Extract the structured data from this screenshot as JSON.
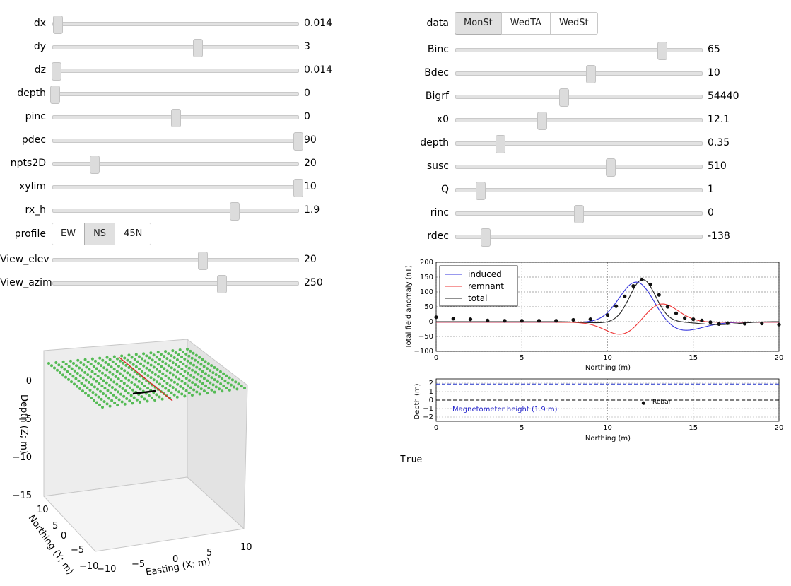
{
  "left_sliders": [
    {
      "label": "dx",
      "value": "0.014",
      "frac": 0.02
    },
    {
      "label": "dy",
      "value": "3",
      "frac": 0.59
    },
    {
      "label": "dz",
      "value": "0.014",
      "frac": 0.015
    },
    {
      "label": "depth",
      "value": "0",
      "frac": 0.01
    },
    {
      "label": "pinc",
      "value": "0",
      "frac": 0.5
    },
    {
      "label": "pdec",
      "value": "90",
      "frac": 1.0
    },
    {
      "label": "npts2D",
      "value": "20",
      "frac": 0.17
    },
    {
      "label": "xylim",
      "value": "10",
      "frac": 1.0
    },
    {
      "label": "rx_h",
      "value": "1.9",
      "frac": 0.74
    }
  ],
  "profile": {
    "label": "profile",
    "options": [
      "EW",
      "NS",
      "45N"
    ],
    "selected": "NS"
  },
  "left_sliders_2": [
    {
      "label": "View_elev",
      "value": "20",
      "frac": 0.61
    },
    {
      "label": "View_azim",
      "value": "250",
      "frac": 0.69
    }
  ],
  "data_toggle": {
    "label": "data",
    "options": [
      "MonSt",
      "WedTA",
      "WedSt"
    ],
    "selected": "MonSt"
  },
  "right_sliders": [
    {
      "label": "Binc",
      "value": "65",
      "frac": 0.84
    },
    {
      "label": "Bdec",
      "value": "10",
      "frac": 0.55
    },
    {
      "label": "Bigrf",
      "value": "54440",
      "frac": 0.44
    },
    {
      "label": "x0",
      "value": "12.1",
      "frac": 0.35
    },
    {
      "label": "depth",
      "value": "0.35",
      "frac": 0.18
    },
    {
      "label": "susc",
      "value": "510",
      "frac": 0.63
    },
    {
      "label": "Q",
      "value": "1",
      "frac": 0.1
    },
    {
      "label": "rinc",
      "value": "0",
      "frac": 0.5
    },
    {
      "label": "rdec",
      "value": "-138",
      "frac": 0.12
    }
  ],
  "chart_data": [
    {
      "type": "line",
      "xlabel": "Northing (m)",
      "ylabel": "Total field anomaly (nT)",
      "xlim": [
        0,
        20
      ],
      "ylim": [
        -100,
        200
      ],
      "xticks": [
        "0",
        "5",
        "10",
        "15",
        "20"
      ],
      "yticks": [
        "200",
        "150",
        "100",
        "50",
        "0",
        "−50",
        "−100"
      ],
      "grid": true,
      "legend_position": "top-left",
      "series": [
        {
          "name": "induced",
          "color": "#3333dd"
        },
        {
          "name": "remnant",
          "color": "#ee3333"
        },
        {
          "name": "total",
          "color": "#222222"
        }
      ],
      "observed": {
        "x": [
          0,
          1,
          2,
          3,
          4,
          5,
          6,
          7,
          8,
          9,
          10,
          10.5,
          11,
          11.5,
          12,
          12.5,
          13,
          13.5,
          14,
          14.5,
          15,
          15.5,
          16,
          16.5,
          17,
          18,
          19,
          20
        ],
        "y": [
          15,
          10,
          8,
          4,
          3,
          3,
          3,
          3,
          6,
          8,
          22,
          52,
          85,
          120,
          142,
          125,
          90,
          50,
          28,
          12,
          8,
          4,
          -2,
          -8,
          -5,
          -7,
          -6,
          -10
        ]
      }
    },
    {
      "type": "scatter",
      "xlabel": "Northing (m)",
      "ylabel": "Depth (m)",
      "xlim": [
        0,
        20
      ],
      "ylim": [
        -2.5,
        2.5
      ],
      "xticks": [
        "0",
        "5",
        "10",
        "15",
        "20"
      ],
      "yticks": [
        "2",
        "1",
        "0",
        "−1",
        "−2"
      ],
      "grid": true,
      "points": [
        {
          "x": 12.1,
          "y": -0.35,
          "label": "Rebar"
        }
      ],
      "annotations": [
        {
          "text": "Magnetometer height (1.9 m)",
          "color": "#2222cc"
        }
      ],
      "hlines": [
        {
          "y": 1.9,
          "color": "#2233cc",
          "style": "dashed"
        },
        {
          "y": 0,
          "color": "#000000",
          "style": "dashed"
        }
      ]
    }
  ],
  "plot3d": {
    "zlabel": "Depth (Z; m)",
    "ylabel": "Northing (Y; m)",
    "xlabel": "Easting (X; m)",
    "zticks": [
      "0",
      "−5",
      "−10",
      "−15"
    ],
    "yticks": [
      "10",
      "5",
      "0",
      "−5",
      "−10"
    ],
    "xticks": [
      "−10",
      "−5",
      "0",
      "5",
      "10"
    ]
  },
  "output_text": "True"
}
